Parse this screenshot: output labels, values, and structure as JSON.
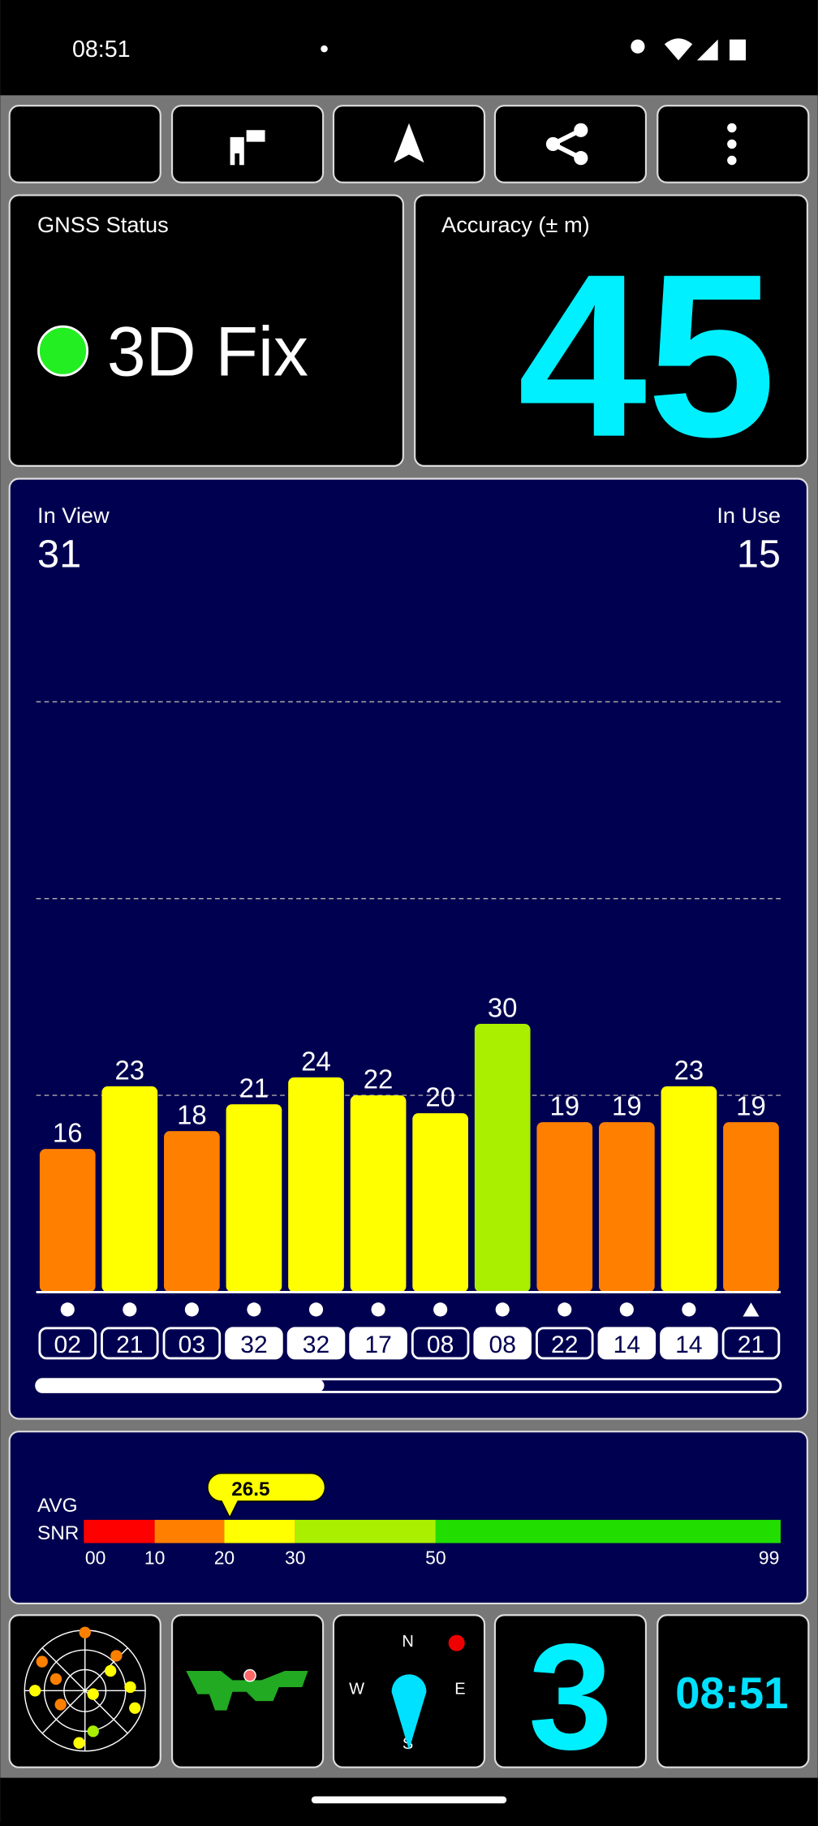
{
  "status_bar": {
    "time": "08:51"
  },
  "gnss_status": {
    "label": "GNSS Status",
    "value": "3D Fix"
  },
  "accuracy": {
    "label": "Accuracy (± m)",
    "value": "45"
  },
  "satellites": {
    "in_view_label": "In View",
    "in_view": "31",
    "in_use_label": "In Use",
    "in_use": "15"
  },
  "chart_data": {
    "type": "bar",
    "categories": [
      "02",
      "21",
      "03",
      "32",
      "32",
      "17",
      "08",
      "08",
      "22",
      "14",
      "14",
      "21"
    ],
    "values": [
      16,
      23,
      18,
      21,
      24,
      22,
      20,
      30,
      19,
      19,
      23,
      19
    ],
    "colors": [
      "#ff8000",
      "#ffff00",
      "#ff8000",
      "#ffff00",
      "#ffff00",
      "#ffff00",
      "#ffff00",
      "#aaee00",
      "#ff8000",
      "#ff8000",
      "#ffff00",
      "#ff8000"
    ],
    "in_use": [
      false,
      false,
      false,
      true,
      true,
      true,
      false,
      true,
      false,
      true,
      true,
      false
    ],
    "ylim": [
      0,
      66
    ]
  },
  "snr": {
    "label_1": "AVG",
    "label_2": "SNR",
    "avg": 26.5,
    "avg_label": "26.5",
    "scale": [
      {
        "value": 0,
        "label": "00"
      },
      10,
      20,
      30,
      50,
      99
    ],
    "colors": [
      "#ff0000",
      "#ff8000",
      "#ffff00",
      "#aaee00",
      "#22dd00"
    ]
  },
  "tiles": {
    "compass_n": "N",
    "compass_e": "E",
    "compass_s": "S",
    "compass_w": "W",
    "count": "3",
    "clock": "08:51"
  }
}
